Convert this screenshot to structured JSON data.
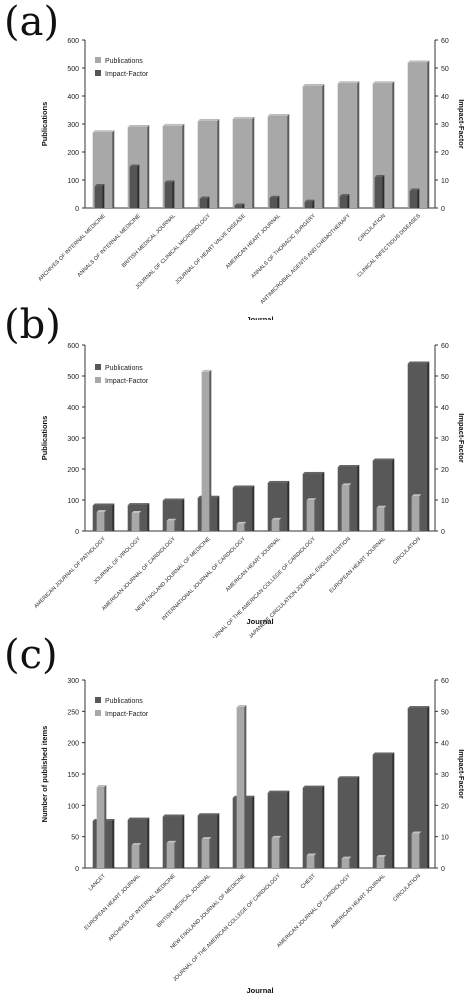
{
  "panels": [
    {
      "label": "(a)",
      "chart_data": {
        "type": "bar",
        "categories": [
          "ARCHIVES OF INTERNAL MEDICINE",
          "ANNALS OF INTERNAL MEDICINE",
          "BRITISH MEDICAL JOURNAL",
          "JOURNAL OF CLINICAL MICROBIOLOGY",
          "JOURNAL OF HEART VALVE DISEASE",
          "AMERICAN HEART JOURNAL",
          "ANNALS OF THORACIC SURGERY",
          "ANTIMICROBIAL AGENTS AND CHEMOTHERAPY",
          "CIRCULATION",
          "CLINICAL INFECTIOUS DISEASES"
        ],
        "series": [
          {
            "name": "Publications",
            "axis": "left",
            "values": [
              270,
              289,
              293,
              310,
              318,
              328,
              435,
              445,
              445,
              519
            ],
            "color": "#a8a8a8"
          },
          {
            "name": "Impact-Factor",
            "axis": "right",
            "values": [
              7.8,
              14.8,
              9.1,
              3.3,
              0.9,
              3.6,
              2.2,
              4.2,
              11.0,
              6.2
            ],
            "color": "#555555"
          }
        ],
        "xlabel": "Journal",
        "ylabel": "Publications",
        "y2label": "Impact-Factor",
        "ylim": [
          0,
          600
        ],
        "y2lim": [
          0,
          60
        ],
        "yticks": [
          0,
          100,
          200,
          300,
          400,
          500,
          600
        ],
        "y2ticks": [
          0,
          10,
          20,
          30,
          40,
          50,
          60
        ],
        "legend_placement": "top-left"
      }
    },
    {
      "label": "(b)",
      "chart_data": {
        "type": "bar",
        "categories": [
          "AMERICAN JOURNAL OF PATHOLOGY",
          "JOURNAL OF VIROLOGY",
          "AMERICAN JOURNAL OF CARDIOLOGY",
          "NEW ENGLAND JOURNAL OF MEDICINE",
          "INTERNATIONAL JOURNAL OF CARDIOLOGY",
          "AMERICAN HEART JOURNAL",
          "JOURNAL OF THE AMERICAN COLLEGE OF CARDIOLOGY",
          "JAPANESE CIRCULATION JOURNAL-ENGLISH EDITION",
          "EUROPEAN HEART JOURNAL",
          "CIRCULATION"
        ],
        "series": [
          {
            "name": "Publications",
            "axis": "left",
            "values": [
              82,
              83,
              98,
              107,
              140,
              155,
              184,
              206,
              227,
              540
            ],
            "color": "#585858"
          },
          {
            "name": "Impact-Factor",
            "axis": "right",
            "values": [
              6.1,
              5.8,
              3.3,
              51.3,
              2.3,
              3.6,
              9.9,
              14.7,
              7.5,
              11.2
            ],
            "color": "#a8a8a8"
          }
        ],
        "xlabel": "Journal",
        "ylabel": "Publications",
        "y2label": "Impact-Factor",
        "ylim": [
          0,
          600
        ],
        "y2lim": [
          0,
          60
        ],
        "yticks": [
          0,
          100,
          200,
          300,
          400,
          500,
          600
        ],
        "y2ticks": [
          0,
          10,
          20,
          30,
          40,
          50,
          60
        ],
        "legend_placement": "top-left"
      }
    },
    {
      "label": "(c)",
      "chart_data": {
        "type": "bar",
        "categories": [
          "LANCET",
          "EUROPEAN HEART JOURNAL",
          "ARCHIVES OF INTERNAL MEDICINE",
          "BRITISH MEDICAL JOURNAL",
          "NEW ENGLAND JOURNAL OF MEDICINE",
          "JOURNAL OF THE AMERICAN COLLEGE OF CARDIOLOGY",
          "CHEST",
          "AMERICAN JOURNAL OF CARDIOLOGY",
          "AMERICAN HEART JOURNAL",
          "CIRCULATION"
        ],
        "series": [
          {
            "name": "Publications",
            "axis": "left",
            "values": [
              75,
              77,
              82,
              84,
              112,
              120,
              128,
              143,
              181,
              255
            ],
            "color": "#585858"
          },
          {
            "name": "Impact-Factor",
            "axis": "right",
            "values": [
              25.8,
              7.3,
              8.0,
              9.2,
              51.3,
              9.6,
              4.0,
              3.0,
              3.5,
              11.0
            ],
            "color": "#a8a8a8"
          }
        ],
        "xlabel": "Journal",
        "ylabel": "Number of published  items",
        "y2label": "Impact-Factor",
        "ylim": [
          0,
          300
        ],
        "y2lim": [
          0,
          60
        ],
        "yticks": [
          0,
          50,
          100,
          150,
          200,
          250,
          300
        ],
        "y2ticks": [
          0,
          10,
          20,
          30,
          40,
          50,
          60
        ],
        "legend_placement": "top-left"
      }
    }
  ]
}
